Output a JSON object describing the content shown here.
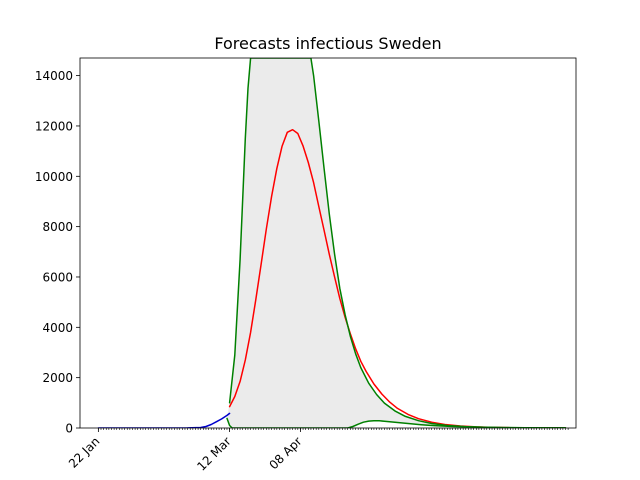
{
  "chart_data": {
    "type": "line",
    "title": "Forecasts infectious Sweden",
    "xlabel": "",
    "ylabel": "",
    "ylim": [
      0,
      14700
    ],
    "y_ticks": [
      0,
      2000,
      4000,
      6000,
      8000,
      10000,
      12000,
      14000
    ],
    "y_tick_labels": [
      "0",
      "2000",
      "4000",
      "6000",
      "8000",
      "10000",
      "12000",
      "14000"
    ],
    "x_range": [
      "2020-01-15",
      "2020-07-22"
    ],
    "x_tick_labels": [
      {
        "date": "2020-01-22",
        "label": "22 Jan"
      },
      {
        "date": "2020-03-12",
        "label": "12 Mar"
      },
      {
        "date": "2020-04-08",
        "label": "08 Apr"
      }
    ],
    "minor_ticks": {
      "start": "2020-01-22",
      "end": "2020-07-19",
      "step_days": 1
    },
    "grid": false,
    "legend": "none",
    "series": [
      {
        "role": "observed",
        "color": "#0000cc",
        "x": [
          "2020-01-22",
          "2020-02-15",
          "2020-02-25",
          "2020-03-01",
          "2020-03-03",
          "2020-03-05",
          "2020-03-07",
          "2020-03-09",
          "2020-03-11",
          "2020-03-12"
        ],
        "y": [
          0,
          0,
          5,
          20,
          60,
          140,
          250,
          360,
          500,
          580
        ]
      },
      {
        "role": "forecast",
        "color": "#ff0000",
        "x": [
          "2020-03-12",
          "2020-03-14",
          "2020-03-16",
          "2020-03-18",
          "2020-03-20",
          "2020-03-22",
          "2020-03-24",
          "2020-03-26",
          "2020-03-28",
          "2020-03-30",
          "2020-04-01",
          "2020-04-03",
          "2020-04-05",
          "2020-04-07",
          "2020-04-09",
          "2020-04-11",
          "2020-04-13",
          "2020-04-15",
          "2020-04-17",
          "2020-04-19",
          "2020-04-21",
          "2020-04-23",
          "2020-04-25",
          "2020-04-27",
          "2020-04-29",
          "2020-05-01",
          "2020-05-03",
          "2020-05-06",
          "2020-05-09",
          "2020-05-12",
          "2020-05-15",
          "2020-05-19",
          "2020-05-23",
          "2020-05-28",
          "2020-06-02",
          "2020-06-08",
          "2020-06-14",
          "2020-06-20",
          "2020-06-27",
          "2020-07-04",
          "2020-07-11",
          "2020-07-18"
        ],
        "y": [
          850,
          1250,
          1850,
          2700,
          3800,
          5100,
          6500,
          7900,
          9200,
          10300,
          11200,
          11750,
          11850,
          11700,
          11200,
          10550,
          9750,
          8800,
          7850,
          6900,
          6000,
          5150,
          4400,
          3750,
          3150,
          2650,
          2250,
          1750,
          1350,
          1030,
          780,
          540,
          370,
          230,
          140,
          80,
          45,
          25,
          12,
          6,
          3,
          2
        ]
      },
      {
        "role": "upper-bound",
        "color": "#008000",
        "x": [
          "2020-03-12",
          "2020-03-14",
          "2020-03-16",
          "2020-03-18",
          "2020-03-19",
          "2020-03-20",
          "2020-04-12",
          "2020-04-13",
          "2020-04-15",
          "2020-04-17",
          "2020-04-19",
          "2020-04-21",
          "2020-04-23",
          "2020-04-25",
          "2020-04-27",
          "2020-04-29",
          "2020-05-01",
          "2020-05-04",
          "2020-05-07",
          "2020-05-10",
          "2020-05-14",
          "2020-05-18",
          "2020-05-23",
          "2020-05-28",
          "2020-06-03",
          "2020-06-10",
          "2020-06-17",
          "2020-06-24",
          "2020-07-02",
          "2020-07-10",
          "2020-07-18"
        ],
        "y": [
          1000,
          2900,
          6700,
          11500,
          13500,
          14700,
          14700,
          14000,
          12200,
          10300,
          8500,
          6900,
          5550,
          4500,
          3650,
          2950,
          2400,
          1780,
          1330,
          990,
          680,
          460,
          290,
          180,
          100,
          55,
          30,
          17,
          9,
          5,
          3
        ]
      },
      {
        "role": "lower-bound",
        "color": "#008000",
        "x": [
          "2020-03-11",
          "2020-03-12",
          "2020-03-13",
          "2020-04-26",
          "2020-04-28",
          "2020-04-30",
          "2020-05-02",
          "2020-05-04",
          "2020-05-06",
          "2020-05-08",
          "2020-05-10",
          "2020-05-13",
          "2020-05-16",
          "2020-05-20",
          "2020-05-24",
          "2020-05-29",
          "2020-06-04",
          "2020-06-10",
          "2020-06-17",
          "2020-06-25",
          "2020-07-03",
          "2020-07-11",
          "2020-07-18"
        ],
        "y": [
          380,
          100,
          0,
          0,
          60,
          150,
          230,
          275,
          290,
          285,
          270,
          240,
          205,
          165,
          130,
          95,
          65,
          42,
          26,
          15,
          8,
          4,
          2
        ]
      }
    ],
    "band": {
      "color": "#ebebeb",
      "between": [
        "lower-bound",
        "upper-bound"
      ]
    }
  }
}
